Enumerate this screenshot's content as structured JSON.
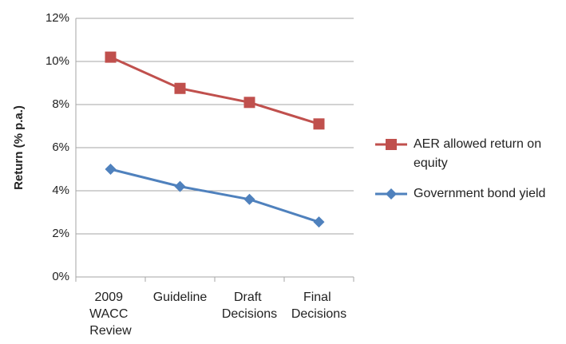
{
  "chart_data": {
    "type": "line",
    "y_label": "Return (% p.a.)",
    "categories": [
      "2009 WACC Review",
      "Guideline",
      "Draft Decisions",
      "Final Decisions"
    ],
    "series": [
      {
        "name": "AER allowed return on equity",
        "color": "#c0504d",
        "marker": "square",
        "values": [
          10.2,
          8.75,
          8.1,
          7.1
        ]
      },
      {
        "name": "Government bond yield",
        "color": "#4f81bd",
        "marker": "diamond",
        "values": [
          5.0,
          4.2,
          3.6,
          2.55
        ]
      }
    ],
    "ylim": [
      0,
      12
    ],
    "yticks": [
      {
        "value": 0,
        "label": "0%"
      },
      {
        "value": 2,
        "label": "2%"
      },
      {
        "value": 4,
        "label": "4%"
      },
      {
        "value": 6,
        "label": "6%"
      },
      {
        "value": 8,
        "label": "8%"
      },
      {
        "value": 10,
        "label": "10%"
      },
      {
        "value": 12,
        "label": "12%"
      }
    ],
    "grid": true,
    "legend": "right"
  }
}
